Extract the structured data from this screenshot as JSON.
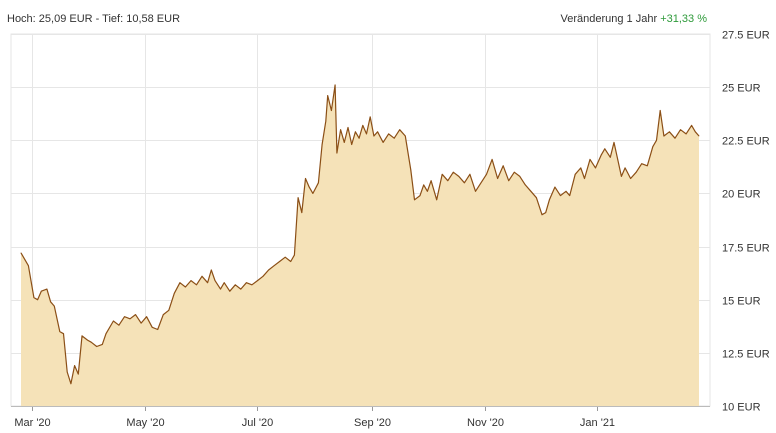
{
  "header": {
    "high_low": "Hoch: 25,09 EUR - Tief: 10,58 EUR",
    "change_label": "Veränderung 1 Jahr",
    "change_value": "+31,33 %"
  },
  "colors": {
    "line": "#8b4f16",
    "fill": "#f5e2b8",
    "grid": "#e6e6e6",
    "axis_text": "#333333",
    "positive": "#2e9a3a"
  },
  "chart_data": {
    "type": "area",
    "title": "",
    "xlabel": "",
    "ylabel": "",
    "ylim": [
      10,
      27.5
    ],
    "y_ticks": [
      10,
      12.5,
      15,
      17.5,
      20,
      22.5,
      25,
      27.5
    ],
    "y_tick_labels": [
      "10 EUR",
      "12.5 EUR",
      "15 EUR",
      "17.5 EUR",
      "20 EUR",
      "22.5 EUR",
      "25 EUR",
      "27.5 EUR"
    ],
    "x_ticks": [
      "2020-03-01",
      "2020-05-01",
      "2020-07-01",
      "2020-09-01",
      "2020-11-01",
      "2021-01-01"
    ],
    "x_tick_labels": [
      "Mar '20",
      "May '20",
      "Jul '20",
      "Sep '20",
      "Nov '20",
      "Jan '21"
    ],
    "xlim": [
      "2020-02-24",
      "2021-02-25"
    ],
    "grid": true,
    "y_axis_position": "right",
    "series": [
      {
        "points": [
          [
            "2020-02-24",
            17.2
          ],
          [
            "2020-02-26",
            16.9
          ],
          [
            "2020-02-28",
            16.6
          ],
          [
            "2020-03-02",
            15.1
          ],
          [
            "2020-03-04",
            15.0
          ],
          [
            "2020-03-06",
            15.4
          ],
          [
            "2020-03-09",
            15.5
          ],
          [
            "2020-03-11",
            14.9
          ],
          [
            "2020-03-13",
            14.7
          ],
          [
            "2020-03-16",
            13.5
          ],
          [
            "2020-03-18",
            13.4
          ],
          [
            "2020-03-20",
            11.6
          ],
          [
            "2020-03-22",
            11.05
          ],
          [
            "2020-03-24",
            11.9
          ],
          [
            "2020-03-26",
            11.5
          ],
          [
            "2020-03-28",
            13.3
          ],
          [
            "2020-03-31",
            13.1
          ],
          [
            "2020-04-02",
            13.0
          ],
          [
            "2020-04-05",
            12.8
          ],
          [
            "2020-04-08",
            12.9
          ],
          [
            "2020-04-10",
            13.4
          ],
          [
            "2020-04-14",
            14.0
          ],
          [
            "2020-04-17",
            13.8
          ],
          [
            "2020-04-20",
            14.2
          ],
          [
            "2020-04-23",
            14.1
          ],
          [
            "2020-04-26",
            14.3
          ],
          [
            "2020-04-29",
            13.9
          ],
          [
            "2020-05-02",
            14.2
          ],
          [
            "2020-05-05",
            13.7
          ],
          [
            "2020-05-08",
            13.6
          ],
          [
            "2020-05-11",
            14.3
          ],
          [
            "2020-05-14",
            14.5
          ],
          [
            "2020-05-17",
            15.3
          ],
          [
            "2020-05-20",
            15.8
          ],
          [
            "2020-05-23",
            15.6
          ],
          [
            "2020-05-26",
            15.9
          ],
          [
            "2020-05-29",
            15.7
          ],
          [
            "2020-06-01",
            16.1
          ],
          [
            "2020-06-04",
            15.8
          ],
          [
            "2020-06-06",
            16.4
          ],
          [
            "2020-06-08",
            15.9
          ],
          [
            "2020-06-11",
            15.5
          ],
          [
            "2020-06-13",
            15.8
          ],
          [
            "2020-06-16",
            15.4
          ],
          [
            "2020-06-19",
            15.7
          ],
          [
            "2020-06-22",
            15.5
          ],
          [
            "2020-06-25",
            15.8
          ],
          [
            "2020-06-28",
            15.7
          ],
          [
            "2020-07-01",
            15.9
          ],
          [
            "2020-07-04",
            16.1
          ],
          [
            "2020-07-07",
            16.4
          ],
          [
            "2020-07-10",
            16.6
          ],
          [
            "2020-07-13",
            16.8
          ],
          [
            "2020-07-16",
            17.0
          ],
          [
            "2020-07-19",
            16.8
          ],
          [
            "2020-07-21",
            17.1
          ],
          [
            "2020-07-23",
            19.8
          ],
          [
            "2020-07-25",
            19.1
          ],
          [
            "2020-07-27",
            20.7
          ],
          [
            "2020-07-29",
            20.3
          ],
          [
            "2020-07-31",
            20.0
          ],
          [
            "2020-08-03",
            20.5
          ],
          [
            "2020-08-05",
            22.3
          ],
          [
            "2020-08-07",
            23.4
          ],
          [
            "2020-08-08",
            24.6
          ],
          [
            "2020-08-10",
            23.9
          ],
          [
            "2020-08-12",
            25.1
          ],
          [
            "2020-08-13",
            21.9
          ],
          [
            "2020-08-15",
            23.0
          ],
          [
            "2020-08-17",
            22.4
          ],
          [
            "2020-08-19",
            23.1
          ],
          [
            "2020-08-21",
            22.3
          ],
          [
            "2020-08-23",
            22.9
          ],
          [
            "2020-08-25",
            22.6
          ],
          [
            "2020-08-27",
            23.2
          ],
          [
            "2020-08-29",
            22.8
          ],
          [
            "2020-08-31",
            23.6
          ],
          [
            "2020-09-02",
            22.7
          ],
          [
            "2020-09-04",
            22.9
          ],
          [
            "2020-09-07",
            22.4
          ],
          [
            "2020-09-10",
            22.8
          ],
          [
            "2020-09-13",
            22.6
          ],
          [
            "2020-09-16",
            23.0
          ],
          [
            "2020-09-19",
            22.7
          ],
          [
            "2020-09-22",
            21.1
          ],
          [
            "2020-09-24",
            19.7
          ],
          [
            "2020-09-27",
            19.9
          ],
          [
            "2020-09-29",
            20.4
          ],
          [
            "2020-10-01",
            20.1
          ],
          [
            "2020-10-03",
            20.6
          ],
          [
            "2020-10-06",
            19.7
          ],
          [
            "2020-10-09",
            20.9
          ],
          [
            "2020-10-12",
            20.6
          ],
          [
            "2020-10-15",
            21.0
          ],
          [
            "2020-10-18",
            20.8
          ],
          [
            "2020-10-21",
            20.5
          ],
          [
            "2020-10-24",
            20.9
          ],
          [
            "2020-10-27",
            20.1
          ],
          [
            "2020-10-30",
            20.5
          ],
          [
            "2020-11-02",
            20.9
          ],
          [
            "2020-11-05",
            21.6
          ],
          [
            "2020-11-08",
            20.7
          ],
          [
            "2020-11-11",
            21.3
          ],
          [
            "2020-11-14",
            20.6
          ],
          [
            "2020-11-17",
            21.0
          ],
          [
            "2020-11-20",
            20.8
          ],
          [
            "2020-11-23",
            20.4
          ],
          [
            "2020-11-26",
            20.1
          ],
          [
            "2020-11-29",
            19.8
          ],
          [
            "2020-12-02",
            19.0
          ],
          [
            "2020-12-04",
            19.1
          ],
          [
            "2020-12-06",
            19.7
          ],
          [
            "2020-12-09",
            20.3
          ],
          [
            "2020-12-12",
            19.9
          ],
          [
            "2020-12-15",
            20.1
          ],
          [
            "2020-12-17",
            19.9
          ],
          [
            "2020-12-20",
            20.9
          ],
          [
            "2020-12-23",
            21.2
          ],
          [
            "2020-12-25",
            20.7
          ],
          [
            "2020-12-28",
            21.6
          ],
          [
            "2020-12-31",
            21.2
          ],
          [
            "2021-01-03",
            21.8
          ],
          [
            "2021-01-05",
            22.1
          ],
          [
            "2021-01-08",
            21.7
          ],
          [
            "2021-01-10",
            22.4
          ],
          [
            "2021-01-12",
            21.6
          ],
          [
            "2021-01-14",
            20.8
          ],
          [
            "2021-01-16",
            21.2
          ],
          [
            "2021-01-19",
            20.7
          ],
          [
            "2021-01-22",
            21.0
          ],
          [
            "2021-01-25",
            21.4
          ],
          [
            "2021-01-28",
            21.3
          ],
          [
            "2021-01-31",
            22.2
          ],
          [
            "2021-02-02",
            22.5
          ],
          [
            "2021-02-04",
            23.9
          ],
          [
            "2021-02-06",
            22.7
          ],
          [
            "2021-02-09",
            22.9
          ],
          [
            "2021-02-12",
            22.6
          ],
          [
            "2021-02-15",
            23.0
          ],
          [
            "2021-02-18",
            22.8
          ],
          [
            "2021-02-21",
            23.2
          ],
          [
            "2021-02-23",
            22.9
          ],
          [
            "2021-02-25",
            22.7
          ]
        ]
      }
    ]
  }
}
